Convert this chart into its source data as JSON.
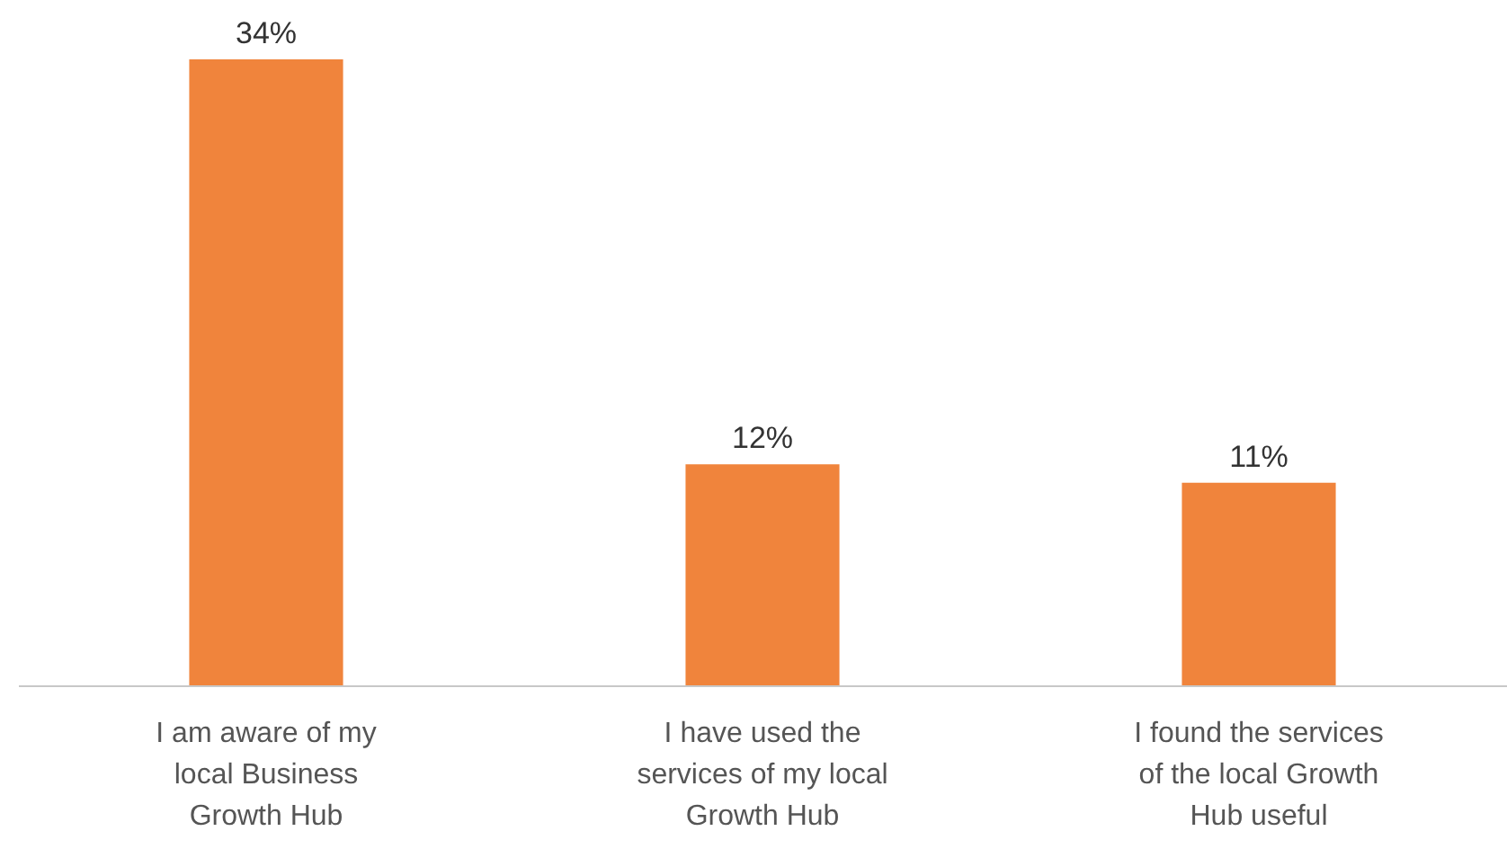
{
  "chart_data": {
    "type": "bar",
    "categories": [
      "I am aware of my local Business Growth Hub",
      "I have used the services of my local Growth Hub",
      "I found the services of the local Growth Hub useful"
    ],
    "values": [
      34,
      12,
      11
    ],
    "value_labels": [
      "34%",
      "12%",
      "11%"
    ],
    "color": "#f0843c"
  }
}
